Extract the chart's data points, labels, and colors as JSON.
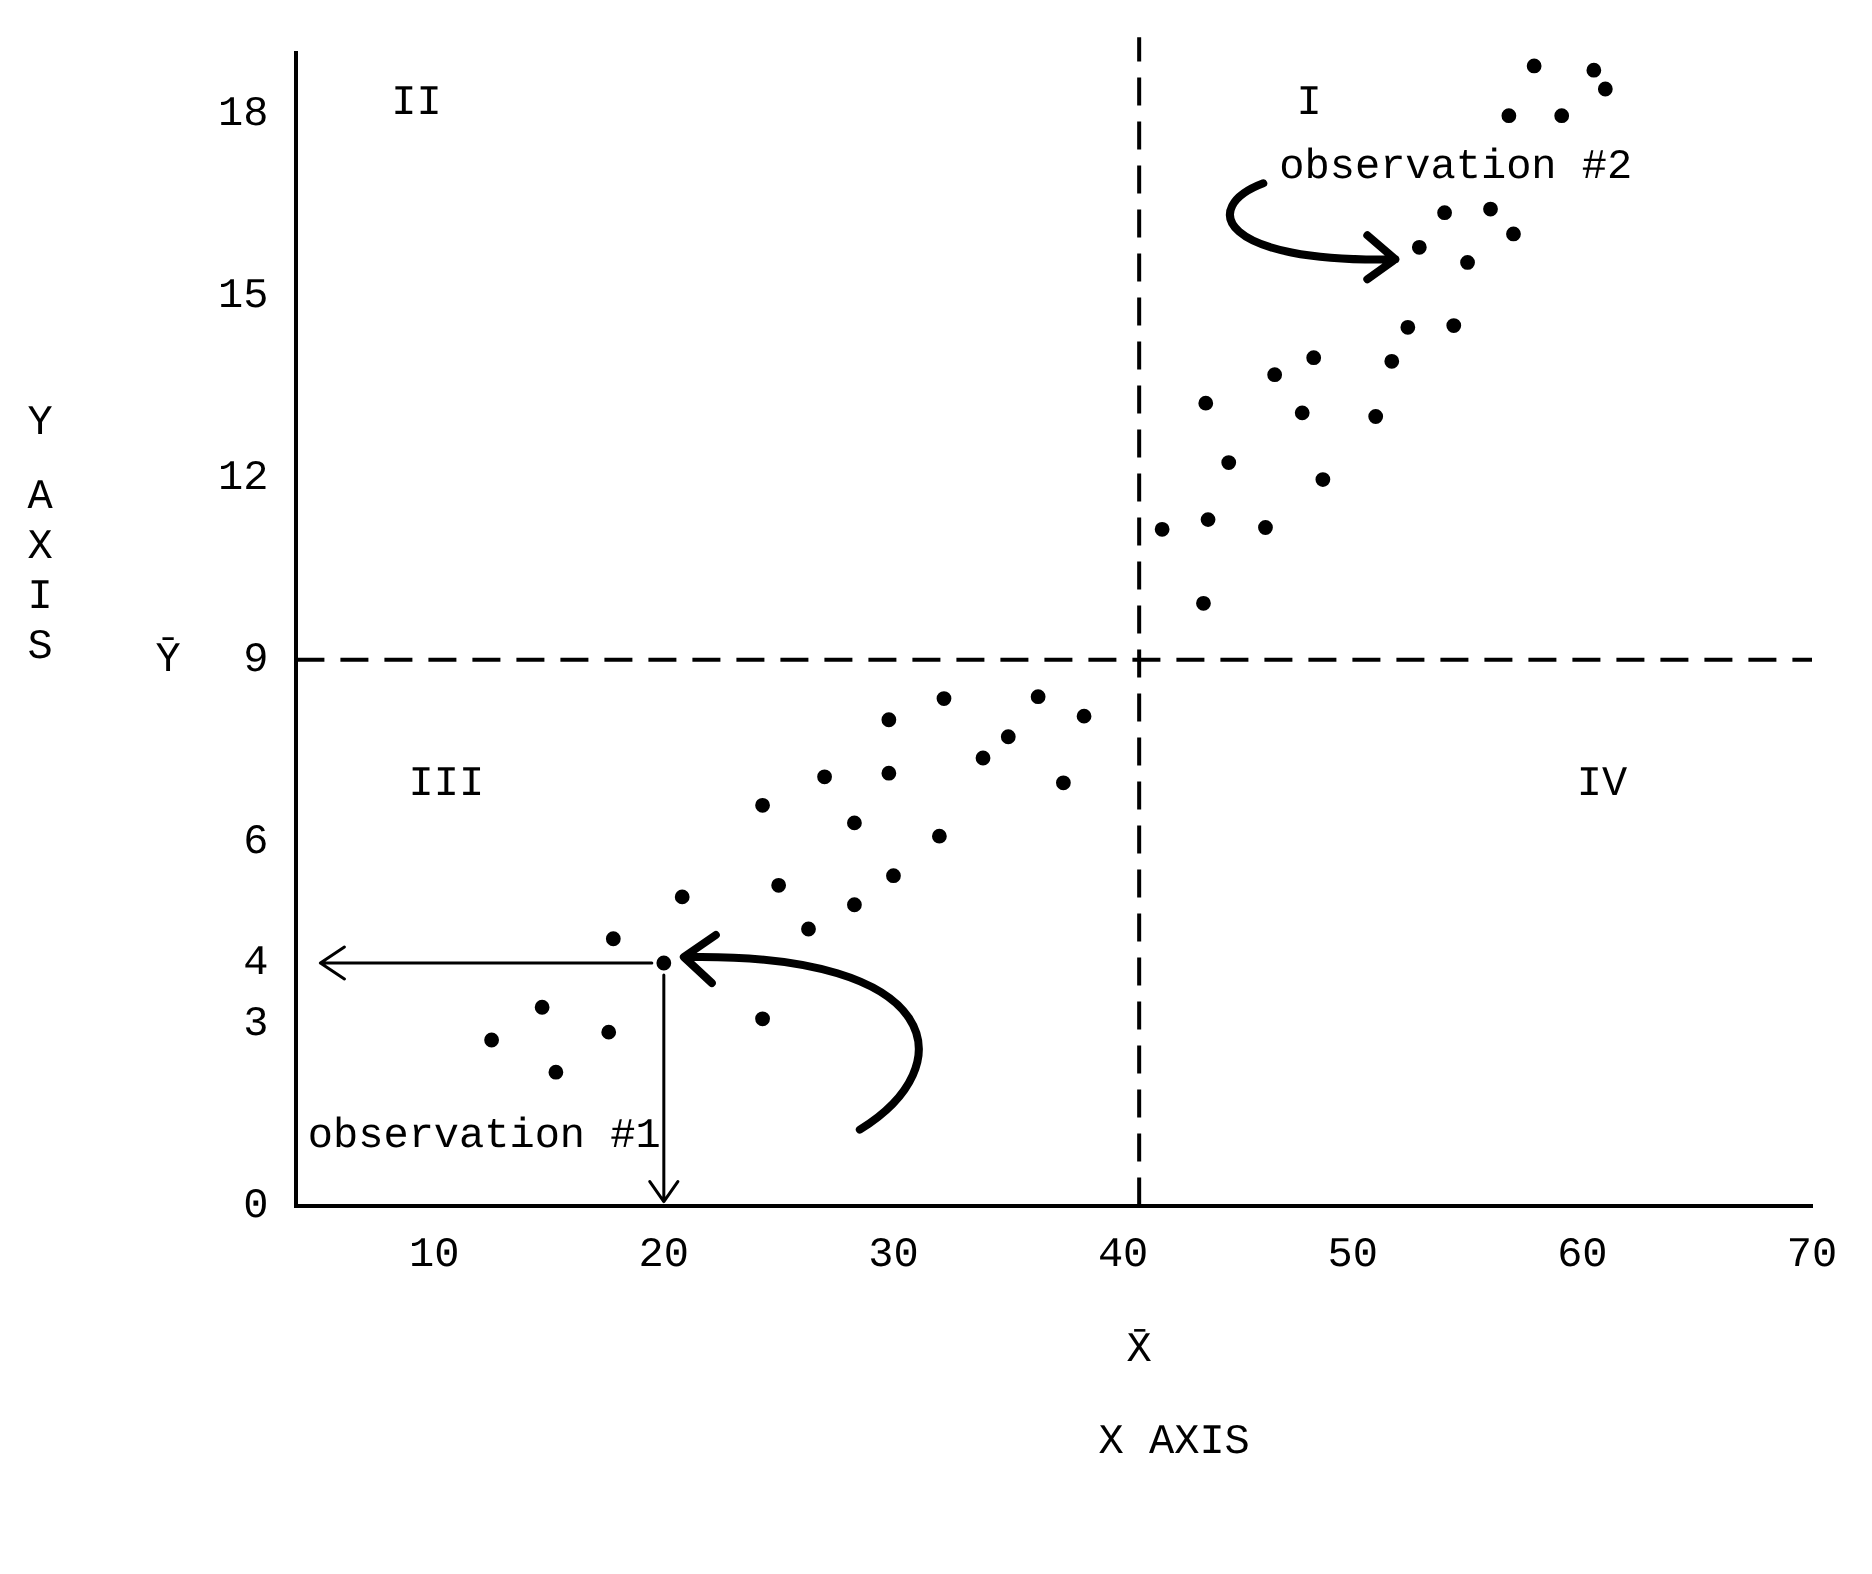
{
  "chart_data": {
    "type": "scatter",
    "xlabel": "X AXIS",
    "ylabel": "Y AXIS",
    "xlim": [
      4,
      70
    ],
    "xticks": [
      10,
      20,
      30,
      40,
      50,
      60,
      70
    ],
    "ylim": [
      0,
      19
    ],
    "yticks": [
      0,
      3,
      4,
      6,
      9,
      12,
      15,
      18
    ],
    "grid": false,
    "legend": false,
    "marker": "circle",
    "series": [
      {
        "color": "#000000",
        "x": [
          12.5,
          15.3,
          14.7,
          17.6,
          17.8,
          20,
          20.8,
          24.3,
          26.3,
          25,
          28.3,
          30,
          32,
          28.3,
          24.3,
          27,
          29.8,
          37.4,
          33.9,
          35,
          29.8,
          32.2,
          36.3,
          38.3,
          43.5,
          41.7,
          43.7,
          46.2,
          44.6,
          48.7,
          43.6,
          47.8,
          51,
          46.6,
          48.3,
          51.7,
          52.4,
          54.4,
          52.9,
          55,
          57,
          54,
          56,
          56.8,
          59.1,
          57.9,
          60.5,
          61
        ],
        "values": [
          2.73,
          2.2,
          3.27,
          2.86,
          4.4,
          4,
          5.09,
          3.08,
          4.56,
          5.28,
          4.96,
          5.44,
          6.09,
          6.31,
          6.6,
          7.07,
          7.13,
          6.97,
          7.38,
          7.73,
          8.01,
          8.36,
          8.39,
          8.07,
          9.93,
          11.15,
          11.31,
          11.18,
          12.25,
          11.97,
          13.23,
          13.07,
          13.01,
          13.7,
          13.98,
          13.92,
          14.48,
          14.51,
          15.8,
          15.55,
          16.02,
          16.37,
          16.43,
          17.97,
          17.97,
          18.79,
          18.72,
          18.41
        ]
      }
    ],
    "ref_lines": [
      {
        "axis": "x",
        "value": 40.7,
        "label": "X̄",
        "line_style": "dashed"
      },
      {
        "axis": "y",
        "value": 9,
        "label": "Ȳ",
        "line_style": "dashed"
      }
    ],
    "annotations": [
      "II",
      "I",
      "III",
      "IV",
      {
        "text": "observation #1",
        "x": 20,
        "y": 4
      },
      {
        "text": "observation #2",
        "x": 52.9,
        "y": 15.8
      }
    ]
  }
}
